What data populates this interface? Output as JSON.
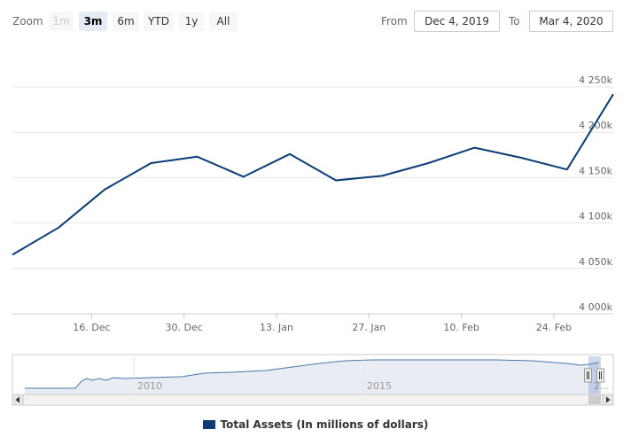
{
  "toolbar": {
    "zoom_label": "Zoom",
    "buttons": [
      {
        "label": "1m",
        "state": "disabled"
      },
      {
        "label": "3m",
        "state": "selected"
      },
      {
        "label": "6m",
        "state": "normal"
      },
      {
        "label": "YTD",
        "state": "normal"
      },
      {
        "label": "1y",
        "state": "normal"
      },
      {
        "label": "All",
        "state": "normal"
      }
    ],
    "from_label": "From",
    "from_value": "Dec 4, 2019",
    "to_label": "To",
    "to_value": "Mar 4, 2020"
  },
  "colors": {
    "series": "#0b3d74",
    "navigator_fill": "#e9edf3",
    "navigator_line": "#4a76a8",
    "grid": "#e6e6e6"
  },
  "chart_data": {
    "type": "line",
    "title": "",
    "xlabel": "",
    "ylabel": "",
    "x_ticks": [
      "16. Dec",
      "30. Dec",
      "13. Jan",
      "27. Jan",
      "10. Feb",
      "24. Feb"
    ],
    "y_ticks": [
      "4 000k",
      "4 050k",
      "4 100k",
      "4 150k",
      "4 200k",
      "4 250k"
    ],
    "ylim": [
      4000000,
      4250000
    ],
    "series": [
      {
        "name": "Total Assets (In millions of dollars)",
        "x": [
          "2019-12-04",
          "2019-12-11",
          "2019-12-18",
          "2019-12-25",
          "2020-01-01",
          "2020-01-08",
          "2020-01-15",
          "2020-01-22",
          "2020-01-29",
          "2020-02-05",
          "2020-02-12",
          "2020-02-19",
          "2020-02-26",
          "2020-03-04"
        ],
        "values": [
          4065000,
          4095000,
          4137000,
          4166000,
          4173000,
          4151000,
          4176000,
          4147000,
          4152000,
          4166000,
          4183000,
          4172000,
          4159000,
          4242000
        ]
      }
    ],
    "legend_position": "bottom-center",
    "grid": true
  },
  "navigator": {
    "tick_labels": [
      "2010",
      "2015"
    ],
    "cut_label": "2..."
  },
  "legend": {
    "label": "Total Assets (In millions of dollars)"
  }
}
